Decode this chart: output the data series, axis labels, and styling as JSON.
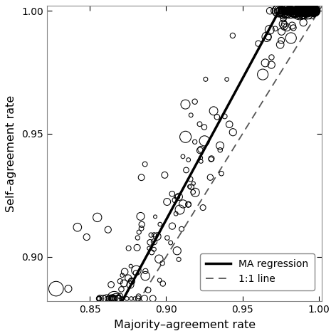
{
  "xlim": [
    0.822,
    1.002
  ],
  "ylim": [
    0.882,
    1.002
  ],
  "xticks": [
    0.85,
    0.9,
    0.95,
    1.0
  ],
  "yticks": [
    0.9,
    0.95,
    1.0
  ],
  "xlabel": "Majority–agreement rate",
  "ylabel": "Self–agreement rate",
  "ma_slope": 1.15,
  "ma_intercept": -0.12,
  "background_color": "#ffffff",
  "scatter_color": "black",
  "scatter_facecolor": "none",
  "line_color": "black",
  "dashed_color": "#555555",
  "legend_labels": [
    "MA regression",
    "1:1 line"
  ],
  "seed": 7
}
